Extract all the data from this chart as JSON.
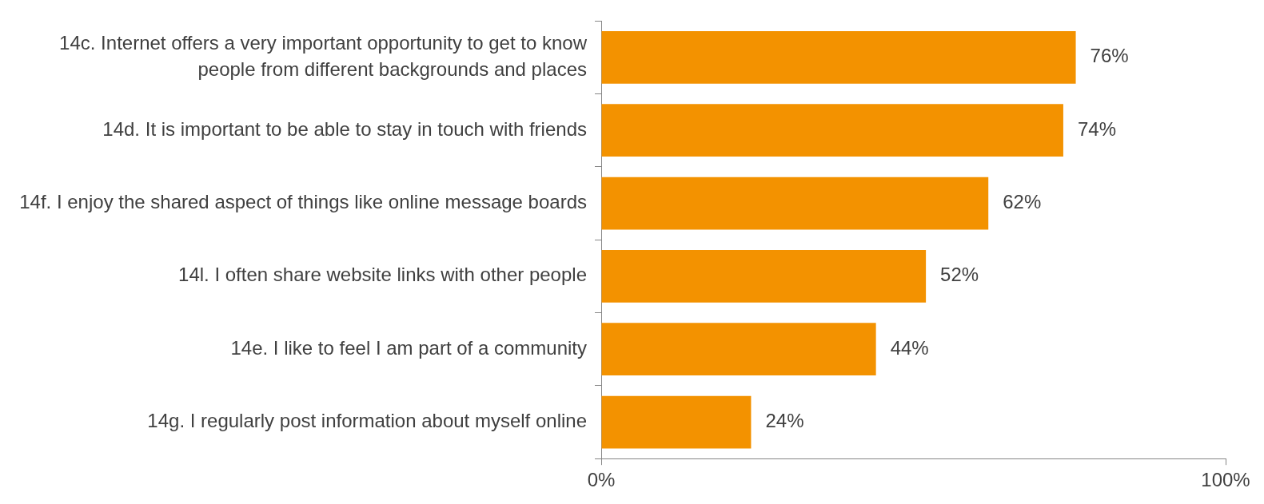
{
  "chart_data": {
    "type": "bar",
    "orientation": "horizontal",
    "categories": [
      "14c. Internet offers a very important opportunity to get to know people from different backgrounds and places",
      "14d. It is important to be able to stay in touch with friends",
      "14f. I enjoy the shared aspect of things like online message boards",
      "14l. I often share website links with other people",
      "14e. I like to feel I am part of a community",
      "14g. I regularly post information about myself online"
    ],
    "values": [
      76,
      74,
      62,
      52,
      44,
      24
    ],
    "value_labels": [
      "76%",
      "74%",
      "62%",
      "52%",
      "44%",
      "24%"
    ],
    "color": "#f39200",
    "xlim": [
      0,
      100
    ],
    "xticks": [
      {
        "value": 0,
        "label": "0%"
      },
      {
        "value": 100,
        "label": "100%"
      }
    ],
    "grid": false,
    "legend": false
  }
}
